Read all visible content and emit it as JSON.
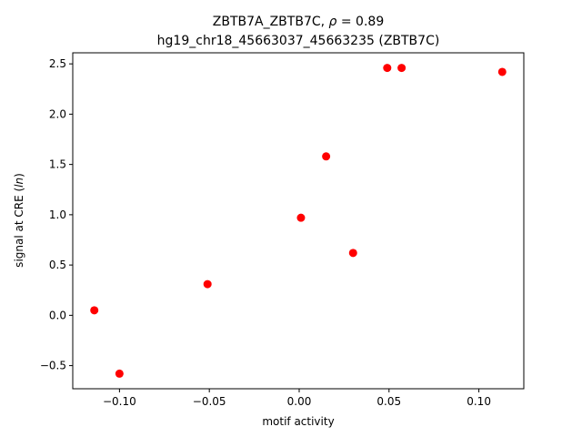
{
  "chart_data": {
    "type": "scatter",
    "title_line1": "ZBTB7A_ZBTB7C, ",
    "title_rho_symbol": "ρ",
    "title_rho_value": " = 0.89",
    "title_line2": "hg19_chr18_45663037_45663235 (ZBTB7C)",
    "xlabel": "motif activity",
    "ylabel_prefix": "signal at CRE (",
    "ylabel_italic": "ln",
    "ylabel_suffix": ")",
    "xlim": [
      -0.126,
      0.125
    ],
    "ylim": [
      -0.73,
      2.61
    ],
    "xticks": [
      -0.1,
      -0.05,
      0.0,
      0.05,
      0.1
    ],
    "xtick_labels": [
      "−0.10",
      "−0.05",
      "0.00",
      "0.05",
      "0.10"
    ],
    "yticks": [
      -0.5,
      0.0,
      0.5,
      1.0,
      1.5,
      2.0,
      2.5
    ],
    "ytick_labels": [
      "−0.5",
      "0.0",
      "0.5",
      "1.0",
      "1.5",
      "2.0",
      "2.5"
    ],
    "grid": false,
    "marker_color": "#ff0000",
    "points": [
      {
        "x": -0.114,
        "y": 0.05
      },
      {
        "x": -0.1,
        "y": -0.58
      },
      {
        "x": -0.051,
        "y": 0.31
      },
      {
        "x": 0.001,
        "y": 0.97
      },
      {
        "x": 0.015,
        "y": 1.58
      },
      {
        "x": 0.03,
        "y": 0.62
      },
      {
        "x": 0.049,
        "y": 2.46
      },
      {
        "x": 0.057,
        "y": 2.46
      },
      {
        "x": 0.113,
        "y": 2.42
      }
    ]
  }
}
